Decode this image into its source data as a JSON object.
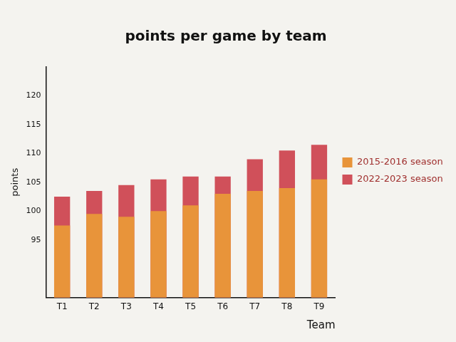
{
  "chart_data": {
    "type": "bar",
    "title": "points per game by team",
    "x_label": "Team",
    "y_label": "points",
    "categories": [
      "T1",
      "T2",
      "T3",
      "T4",
      "T5",
      "T6",
      "T7",
      "T8",
      "T9"
    ],
    "series": [
      {
        "name": "2015-2016 season",
        "color": "#e8943a",
        "values": [
          97.5,
          99.5,
          99,
          100,
          101,
          103,
          103.5,
          104,
          105.5
        ]
      },
      {
        "name": "2022-2023 season",
        "color": "#d0505a",
        "values": [
          102.5,
          103.5,
          104.5,
          105.5,
          106,
          106,
          109,
          110.5,
          111.5
        ]
      }
    ],
    "ylim": [
      85,
      125
    ],
    "yticks": [
      95,
      100,
      105,
      110,
      115,
      120
    ],
    "grid": false,
    "legend": "right"
  }
}
